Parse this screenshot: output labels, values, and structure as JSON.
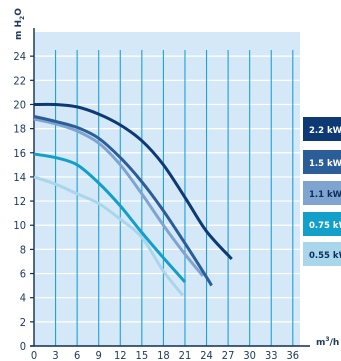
{
  "chart_data": {
    "type": "line",
    "ylabel": "m H2O",
    "xlabel": "m³/h",
    "ylabel_parts": {
      "main": "m H",
      "sub": "2",
      "end": "O"
    },
    "xlabel_parts": {
      "main": "m",
      "sup": "3",
      "end": "/h"
    },
    "xlim": [
      0,
      37
    ],
    "ylim": [
      0,
      26
    ],
    "x_ticks": [
      0,
      3,
      6,
      9,
      12,
      15,
      18,
      21,
      24,
      27,
      30,
      33,
      36
    ],
    "y_ticks": [
      0,
      2,
      4,
      6,
      8,
      10,
      12,
      14,
      16,
      18,
      20,
      22,
      24
    ],
    "grid": true,
    "legend_position": "right",
    "plot_background": "#d5e8f7",
    "vertical_grid_color": "#1fa0d8",
    "horizontal_grid_color": "#ffffff",
    "axis_color": "#0d2e5c",
    "series": [
      {
        "name": "2.2 kW",
        "color": "#0d3a75",
        "x": [
          0,
          3,
          6,
          9,
          12,
          15,
          18,
          21,
          24,
          27.5
        ],
        "y": [
          20,
          20,
          19.8,
          19.2,
          18.3,
          17,
          15,
          12.3,
          9.5,
          7.2
        ]
      },
      {
        "name": "1.5 kW",
        "color": "#2b5d98",
        "x": [
          0,
          3,
          6,
          9,
          12,
          15,
          18,
          21,
          24,
          24.7
        ],
        "y": [
          19,
          18.6,
          18.1,
          17.2,
          15.6,
          13.6,
          11.2,
          8.5,
          5.7,
          5
        ]
      },
      {
        "name": "1.1 kW",
        "color": "#7fa4cf",
        "x": [
          0,
          3,
          6,
          9,
          12,
          15,
          18,
          21,
          23.5
        ],
        "y": [
          18.8,
          18.4,
          17.8,
          16.8,
          15,
          12.6,
          10,
          7.6,
          5.8
        ]
      },
      {
        "name": "0.75 kW",
        "color": "#129fc9",
        "x": [
          0,
          3,
          6,
          9,
          12,
          15,
          18,
          21
        ],
        "y": [
          15.9,
          15.6,
          15,
          13.5,
          11.6,
          9.4,
          7.3,
          5.3
        ]
      },
      {
        "name": "0.55 kW",
        "color": "#a9d6ea",
        "x": [
          0,
          3,
          6,
          9,
          12,
          15,
          18,
          20.7
        ],
        "y": [
          14,
          13.4,
          12.6,
          11.8,
          10.5,
          9,
          6.2,
          4.2
        ]
      }
    ]
  }
}
